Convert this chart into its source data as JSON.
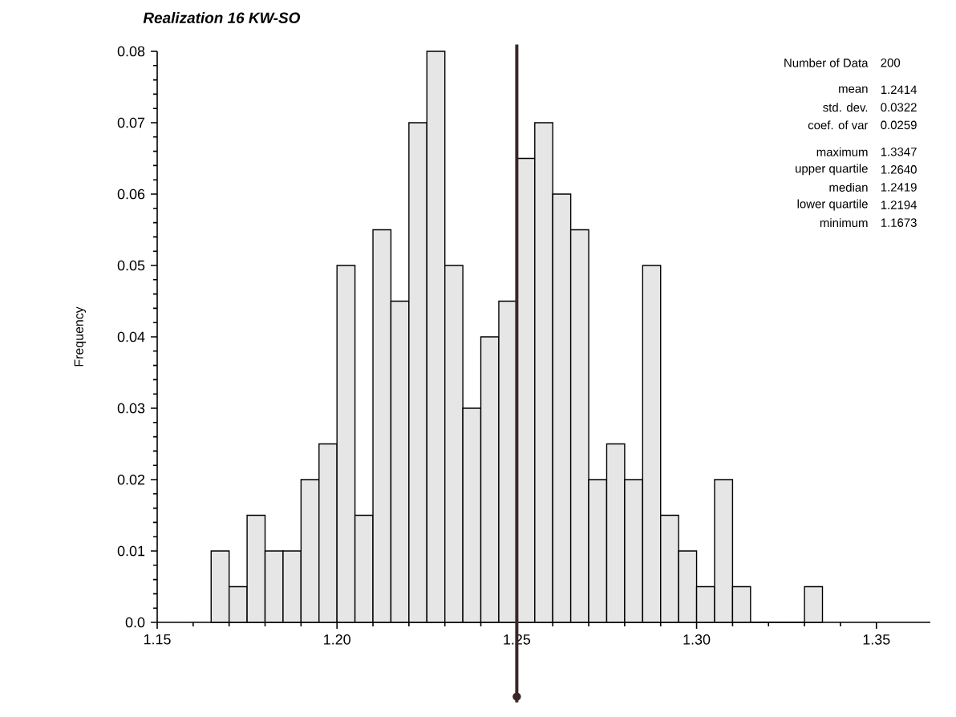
{
  "chart_data": {
    "type": "histogram",
    "title": "Realization 16   KW-SO",
    "ylabel": "Frequency",
    "bins": [
      1.165,
      1.17,
      1.175,
      1.18,
      1.185,
      1.19,
      1.195,
      1.2,
      1.205,
      1.21,
      1.215,
      1.22,
      1.225,
      1.23,
      1.235,
      1.24,
      1.245,
      1.25,
      1.255,
      1.26,
      1.265,
      1.27,
      1.275,
      1.28,
      1.285,
      1.29,
      1.295,
      1.3,
      1.305,
      1.31,
      1.315,
      1.32,
      1.325,
      1.33,
      1.335
    ],
    "values": [
      0.01,
      0.005,
      0.015,
      0.01,
      0.01,
      0.02,
      0.025,
      0.05,
      0.015,
      0.055,
      0.045,
      0.07,
      0.08,
      0.05,
      0.03,
      0.04,
      0.045,
      0.065,
      0.07,
      0.06,
      0.055,
      0.02,
      0.025,
      0.02,
      0.05,
      0.015,
      0.01,
      0.005,
      0.02,
      0.005,
      0,
      0,
      0,
      0.005
    ],
    "color": "#e6e6e6",
    "xlim": [
      1.15,
      1.365
    ],
    "ylim": [
      0,
      0.08
    ],
    "xticks": [
      {
        "value": 1.15,
        "label": "1.15"
      },
      {
        "value": 1.2,
        "label": "1.20"
      },
      {
        "value": 1.25,
        "label": "1.25"
      },
      {
        "value": 1.3,
        "label": "1.30"
      },
      {
        "value": 1.35,
        "label": "1.35"
      }
    ],
    "yticks": [
      {
        "value": 0,
        "label": "0.0"
      },
      0.01,
      0.02,
      0.03,
      0.04,
      0.05,
      0.06,
      0.07,
      0.08
    ],
    "ref_lines": [
      {
        "axis": "x",
        "value": 1.25,
        "color": "#3a2626"
      }
    ],
    "annotations": [
      "Number of Data",
      "200",
      "mean",
      "1.2414",
      "std. dev.",
      "0.0322",
      "coef. of var",
      "0.0259",
      "maximum",
      "1.3347",
      "upper quartile",
      "1.2640",
      "median",
      "1.2419",
      "lower quartile",
      "1.2194",
      "minimum",
      "1.1673"
    ]
  }
}
